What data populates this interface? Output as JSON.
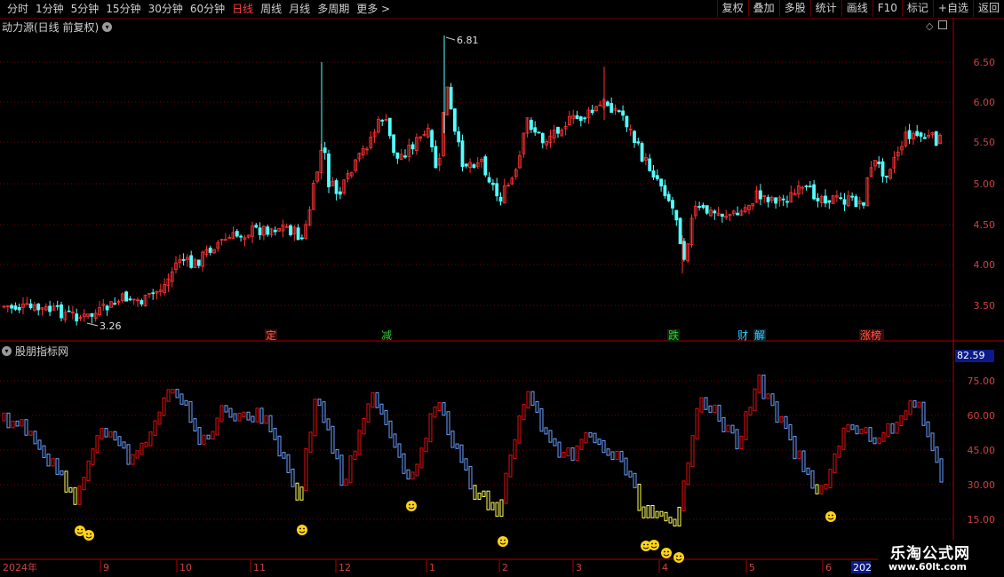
{
  "toolbar": {
    "periods": [
      "分时",
      "1分钟",
      "5分钟",
      "15分钟",
      "30分钟",
      "60分钟",
      "日线",
      "周线",
      "月线",
      "多周期",
      "更多 >"
    ],
    "active_index": 6,
    "right_buttons": [
      "复权",
      "叠加",
      "多股",
      "统计",
      "画线",
      "F10",
      "标记",
      "+自选",
      "返回"
    ]
  },
  "main_chart": {
    "title": "动力源(日线 前复权)",
    "price_ticks": [
      "6.50",
      "6.00",
      "5.50",
      "5.00",
      "4.50",
      "4.00",
      "3.50"
    ],
    "high_label": "6.81",
    "low_label": "3.26",
    "event_labels": [
      {
        "text": "定",
        "color": "#ff5a3c"
      },
      {
        "text": "减",
        "color": "#33cc33"
      },
      {
        "text": "跌",
        "color": "#33cc33"
      },
      {
        "text": "财",
        "color": "#33ccff"
      },
      {
        "text": "解",
        "color": "#33ccff"
      },
      {
        "text": "涨榜",
        "color": "#ff5a3c"
      }
    ]
  },
  "indicator": {
    "title": "股朋指标网",
    "current_value": "82.59",
    "ticks": [
      "75.00",
      "60.00",
      "45.00",
      "30.00",
      "15.00"
    ]
  },
  "date_axis": {
    "labels": [
      "2024年",
      "9",
      "10",
      "11",
      "12",
      "1",
      "2",
      "3",
      "4",
      "5",
      "6",
      "202"
    ]
  },
  "watermark": {
    "name": "乐淘公式网",
    "url": "www.60lt.com"
  },
  "colors": {
    "up": "#ff3232",
    "down": "#54ffff",
    "ind_up": "#e01010",
    "ind_down": "#6aa0ff",
    "ind_yellow": "#ffff60",
    "grid": "#7a0000",
    "axis_text": "#d04040"
  }
}
